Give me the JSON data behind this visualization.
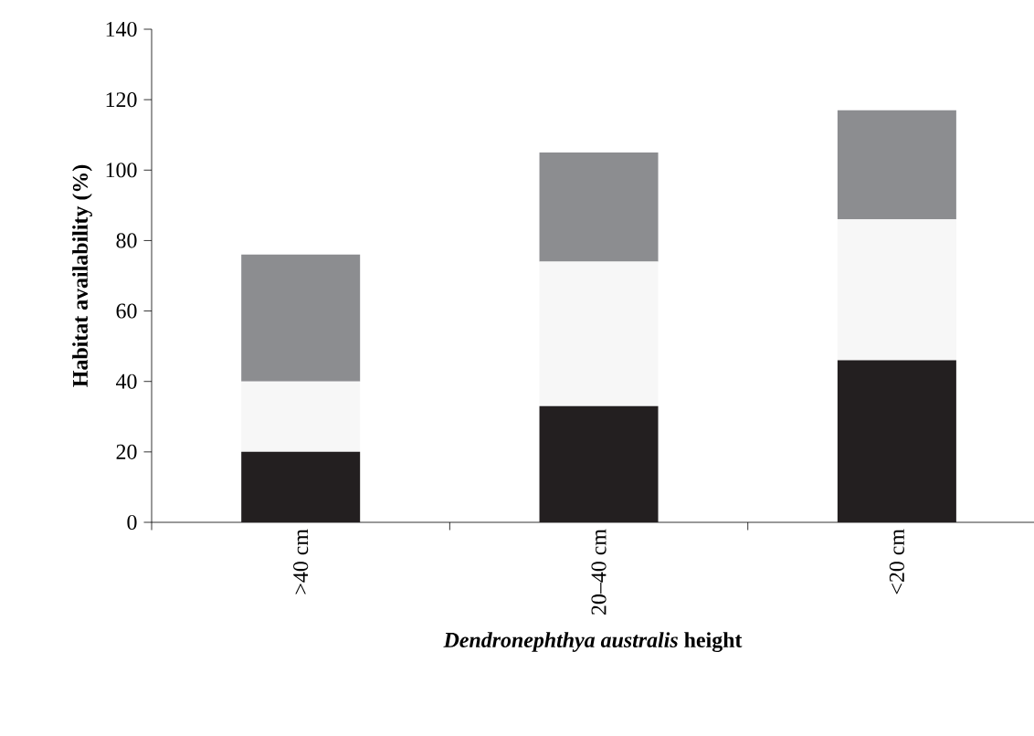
{
  "chart_data": {
    "type": "bar",
    "stacked": true,
    "xlabel": "*Dendronephthya australis* height",
    "ylabel": "Habitat availability (%)",
    "categories": [
      ">40 cm",
      "20–40 cm",
      "<20 cm"
    ],
    "series": [
      {
        "color": "#231f20",
        "values": [
          20,
          33,
          46
        ]
      },
      {
        "color": "#f7f7f7",
        "values": [
          20,
          41,
          40
        ]
      },
      {
        "color": "#8c8d90",
        "values": [
          36,
          31,
          31
        ]
      }
    ],
    "ylim": [
      0,
      140
    ],
    "yticks": [
      0,
      20,
      40,
      60,
      80,
      100,
      120,
      140
    ],
    "grid": false
  }
}
